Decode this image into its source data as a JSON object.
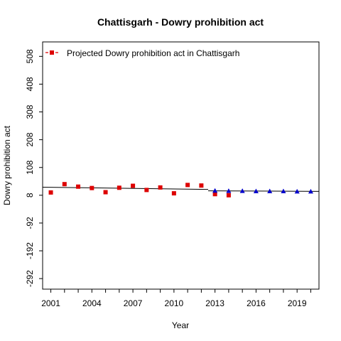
{
  "chart_data": {
    "type": "scatter",
    "title": "Chattisgarh  -  Dowry prohibition act",
    "xlabel": "Year",
    "ylabel": "Dowry prohibition act",
    "xlim": [
      2000.4,
      2020.6
    ],
    "ylim": [
      -330,
      560
    ],
    "x_ticks": [
      2001,
      2004,
      2007,
      2010,
      2013,
      2016,
      2019
    ],
    "x_minor_ticks": [
      2001,
      2002,
      2003,
      2004,
      2005,
      2006,
      2007,
      2008,
      2009,
      2010,
      2011,
      2012,
      2013,
      2014,
      2015,
      2016,
      2017,
      2018,
      2019,
      2020
    ],
    "y_ticks": [
      -292,
      -192,
      -92,
      8,
      108,
      208,
      308,
      408,
      508
    ],
    "y_tick_labels": [
      "-292",
      "-192",
      "-92",
      "8",
      "108",
      "208",
      "308",
      "408",
      "508"
    ],
    "legend": {
      "position": "top-left",
      "label": "Projected  Dowry prohibition act  in  Chattisgarh"
    },
    "series": [
      {
        "kind": "observed",
        "marker": "square",
        "color": "#dd0000",
        "x": [
          2001,
          2002,
          2003,
          2004,
          2005,
          2006,
          2007,
          2008,
          2009,
          2010,
          2011,
          2012,
          2013,
          2014
        ],
        "y": [
          18,
          48,
          39,
          34,
          19,
          35,
          42,
          27,
          36,
          15,
          45,
          43,
          12,
          8
        ]
      },
      {
        "kind": "projected",
        "marker": "triangle",
        "color": "#0000cc",
        "x": [
          2013,
          2014,
          2015,
          2016,
          2017,
          2018,
          2019,
          2020
        ],
        "y": [
          25,
          24,
          24,
          23,
          23,
          23,
          22,
          22
        ]
      }
    ],
    "trend_line": {
      "color": "#000000",
      "segments": [
        {
          "x": [
            2000.4,
            2012.5
          ],
          "y": [
            37,
            29
          ]
        },
        {
          "x": [
            2012.5,
            2020.6
          ],
          "y": [
            24,
            22
          ]
        }
      ]
    },
    "grid": false
  }
}
